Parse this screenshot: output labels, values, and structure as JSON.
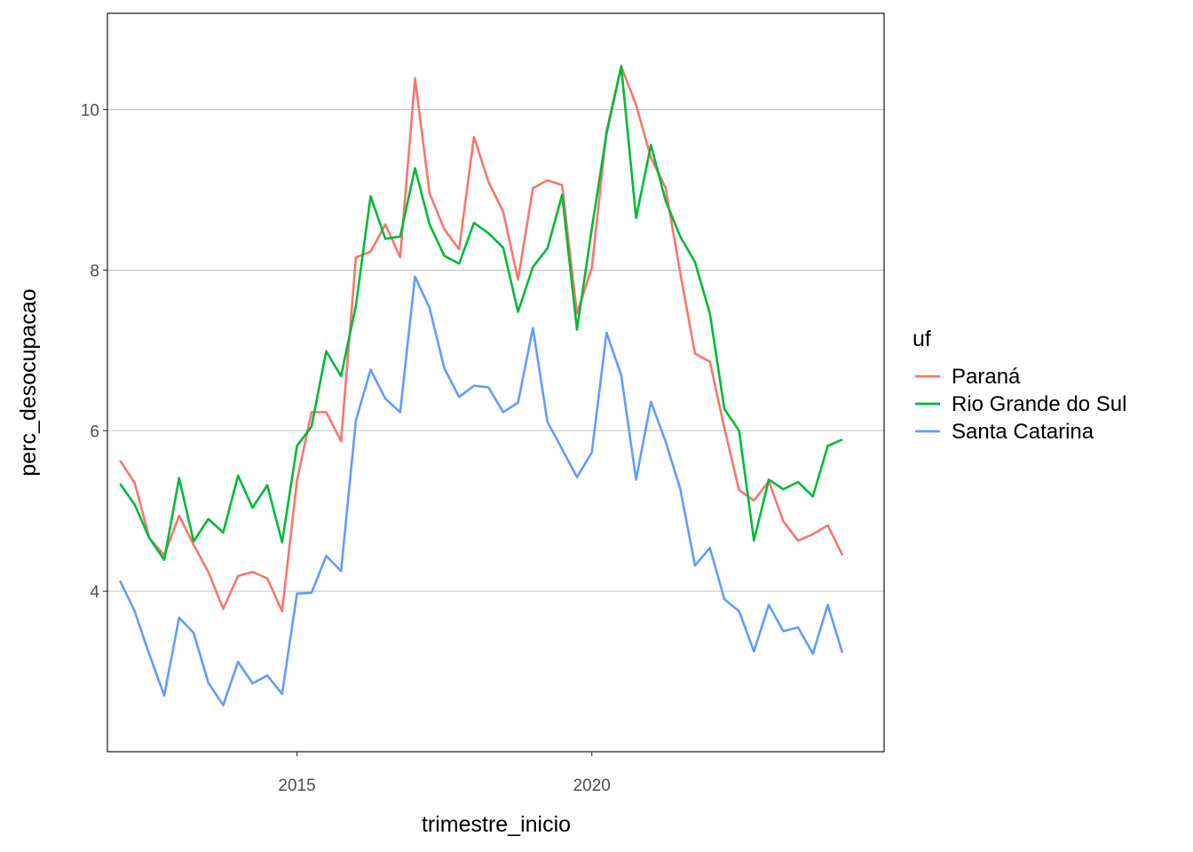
{
  "chart_data": {
    "type": "line",
    "xlabel": "trimestre_inicio",
    "ylabel": "perc_desocupacao",
    "x_ticks": [
      "2015",
      "2020"
    ],
    "y_ticks": [
      "4",
      "6",
      "8",
      "10"
    ],
    "xlim": [
      "2011-10-15",
      "2024-12-15"
    ],
    "ylim": [
      2.0,
      11.2
    ],
    "grid": "horizontal major gridlines",
    "legend": {
      "title": "uf",
      "position": "right"
    },
    "x": [
      "2012-01-01",
      "2012-04-01",
      "2012-07-01",
      "2012-10-01",
      "2013-01-01",
      "2013-04-01",
      "2013-07-01",
      "2013-10-01",
      "2014-01-01",
      "2014-04-01",
      "2014-07-01",
      "2014-10-01",
      "2015-01-01",
      "2015-04-01",
      "2015-07-01",
      "2015-10-01",
      "2016-01-01",
      "2016-04-01",
      "2016-07-01",
      "2016-10-01",
      "2017-01-01",
      "2017-04-01",
      "2017-07-01",
      "2017-10-01",
      "2018-01-01",
      "2018-04-01",
      "2018-07-01",
      "2018-10-01",
      "2019-01-01",
      "2019-04-01",
      "2019-07-01",
      "2019-10-01",
      "2020-01-01",
      "2020-04-01",
      "2020-07-01",
      "2020-10-01",
      "2021-01-01",
      "2021-04-01",
      "2021-07-01",
      "2021-10-01",
      "2022-01-01",
      "2022-04-01",
      "2022-07-01",
      "2022-10-01",
      "2023-01-01",
      "2023-04-01",
      "2023-07-01",
      "2023-10-01",
      "2024-01-01",
      "2024-04-01"
    ],
    "series": [
      {
        "name": "Paraná",
        "color": "#F8766D",
        "values": [
          5.63,
          5.35,
          4.66,
          4.45,
          4.94,
          4.58,
          4.24,
          3.78,
          4.19,
          4.24,
          4.16,
          3.75,
          5.38,
          6.23,
          6.23,
          5.87,
          8.16,
          8.23,
          8.57,
          8.16,
          10.39,
          8.96,
          8.51,
          8.26,
          9.66,
          9.1,
          8.73,
          7.88,
          9.02,
          9.12,
          9.06,
          7.46,
          8.03,
          9.73,
          10.54,
          10.06,
          9.4,
          9.03,
          7.97,
          6.96,
          6.86,
          6.03,
          5.26,
          5.13,
          5.37,
          4.87,
          4.63,
          4.71,
          4.82,
          4.45
        ]
      },
      {
        "name": "Rio Grande do Sul",
        "color": "#00BA38",
        "values": [
          5.34,
          5.08,
          4.66,
          4.39,
          5.41,
          4.62,
          4.9,
          4.73,
          5.44,
          5.04,
          5.32,
          4.61,
          5.81,
          6.05,
          6.99,
          6.68,
          7.56,
          8.92,
          8.39,
          8.42,
          9.27,
          8.57,
          8.18,
          8.08,
          8.59,
          8.46,
          8.28,
          7.48,
          8.04,
          8.27,
          8.94,
          7.26,
          8.52,
          9.7,
          10.54,
          8.65,
          9.56,
          8.87,
          8.42,
          8.1,
          7.46,
          6.27,
          6.0,
          4.63,
          5.39,
          5.27,
          5.36,
          5.18,
          5.81,
          5.89
        ]
      },
      {
        "name": "Santa Catarina",
        "color": "#619CFF",
        "values": [
          4.13,
          3.75,
          3.21,
          2.7,
          3.67,
          3.48,
          2.86,
          2.58,
          3.12,
          2.85,
          2.95,
          2.72,
          3.97,
          3.98,
          4.44,
          4.25,
          6.13,
          6.76,
          6.4,
          6.23,
          7.92,
          7.53,
          6.78,
          6.42,
          6.56,
          6.54,
          6.23,
          6.35,
          7.28,
          6.11,
          5.77,
          5.42,
          5.73,
          7.22,
          6.69,
          5.39,
          6.36,
          5.87,
          5.28,
          4.32,
          4.54,
          3.9,
          3.75,
          3.25,
          3.83,
          3.5,
          3.55,
          3.22,
          3.83,
          3.23
        ]
      }
    ]
  }
}
